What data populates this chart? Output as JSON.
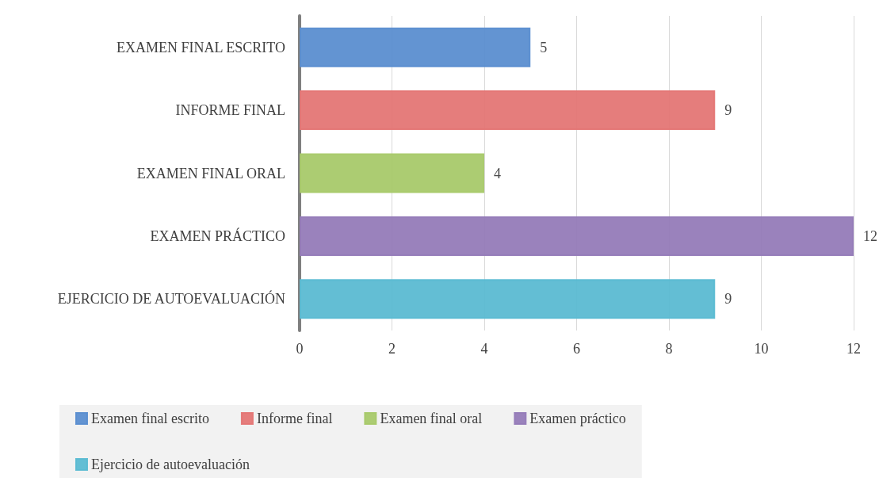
{
  "chart_data": {
    "type": "bar",
    "orientation": "horizontal",
    "categories": [
      "EXAMEN FINAL ESCRITO",
      "INFORME FINAL",
      "EXAMEN FINAL ORAL",
      "EXAMEN PRÁCTICO",
      "EJERCICIO DE AUTOEVALUACIÓN"
    ],
    "series": [
      {
        "name": "Examen final escrito",
        "color": "#5b8ed0",
        "values": [
          5,
          null,
          null,
          null,
          null
        ]
      },
      {
        "name": "Informe final",
        "color": "#e47675",
        "values": [
          null,
          9,
          null,
          null,
          null
        ]
      },
      {
        "name": "Examen final oral",
        "color": "#a8c96a",
        "values": [
          null,
          null,
          4,
          null,
          null
        ]
      },
      {
        "name": "Examen práctico",
        "color": "#957bb8",
        "values": [
          null,
          null,
          null,
          12,
          null
        ]
      },
      {
        "name": "Ejercicio de autoevaluación",
        "color": "#5bbad2",
        "values": [
          null,
          null,
          null,
          null,
          9
        ]
      }
    ],
    "xlim": [
      0,
      12
    ],
    "xticks": [
      0,
      2,
      4,
      6,
      8,
      10,
      12
    ],
    "grid": "x",
    "legend": "bottom",
    "data_labels": true
  }
}
